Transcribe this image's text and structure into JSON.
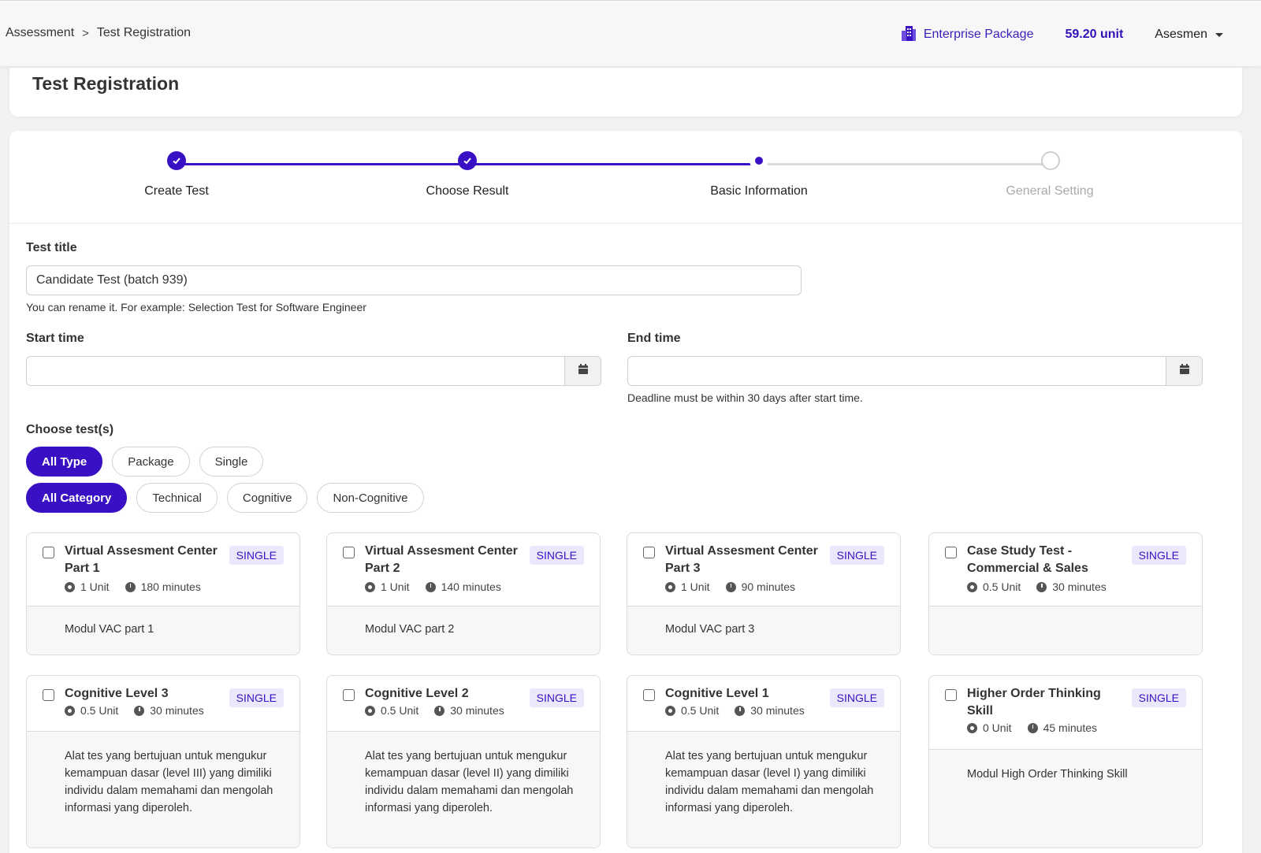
{
  "header": {
    "breadcrumb": [
      "Assessment",
      "Test Registration"
    ],
    "breadcrumb_separator": ">",
    "package_label": "Enterprise Package",
    "units": "59.20 unit",
    "user": "Asesmen"
  },
  "page_title": "Test Registration",
  "stepper": {
    "steps": [
      "Create Test",
      "Choose Result",
      "Basic Information",
      "General Setting"
    ],
    "current_step": 3
  },
  "form": {
    "test_title_label": "Test title",
    "test_title_value": "Candidate Test (batch 939)",
    "test_title_help": "You can rename it. For example: Selection Test for Software Engineer",
    "start_time_label": "Start time",
    "start_time_value": "",
    "end_time_label": "End time",
    "end_time_value": "",
    "end_time_help": "Deadline must be within 30 days after start time."
  },
  "choose_tests": {
    "label": "Choose test(s)",
    "type_filters": [
      "All Type",
      "Package",
      "Single"
    ],
    "category_filters": [
      "All Category",
      "Technical",
      "Cognitive",
      "Non-Cognitive"
    ],
    "active_type": "All Type",
    "active_category": "All Category"
  },
  "tests": [
    {
      "title": "Virtual Assesment Center Part 1",
      "badge": "SINGLE",
      "units": "1 Unit",
      "duration": "180 minutes",
      "description": "Modul VAC part 1"
    },
    {
      "title": "Virtual Assesment Center Part 2",
      "badge": "SINGLE",
      "units": "1 Unit",
      "duration": "140 minutes",
      "description": "Modul VAC part 2"
    },
    {
      "title": "Virtual Assesment Center Part 3",
      "badge": "SINGLE",
      "units": "1 Unit",
      "duration": "90 minutes",
      "description": "Modul VAC part 3"
    },
    {
      "title": "Case Study Test - Commercial & Sales",
      "badge": "SINGLE",
      "units": "0.5 Unit",
      "duration": "30 minutes",
      "description": ""
    },
    {
      "title": "Cognitive Level 3",
      "badge": "SINGLE",
      "units": "0.5 Unit",
      "duration": "30 minutes",
      "description": "Alat tes yang bertujuan untuk mengukur kemampuan dasar (level III) yang dimiliki individu dalam memahami dan mengolah informasi yang diperoleh."
    },
    {
      "title": "Cognitive Level 2",
      "badge": "SINGLE",
      "units": "0.5 Unit",
      "duration": "30 minutes",
      "description": "Alat tes yang bertujuan untuk mengukur kemampuan dasar (level II) yang dimiliki individu dalam memahami dan mengolah informasi yang diperoleh."
    },
    {
      "title": "Cognitive Level 1",
      "badge": "SINGLE",
      "units": "0.5 Unit",
      "duration": "30 minutes",
      "description": "Alat tes yang bertujuan untuk mengukur kemampuan dasar (level I) yang dimiliki individu dalam memahami dan mengolah informasi yang diperoleh."
    },
    {
      "title": "Higher Order Thinking Skill",
      "badge": "SINGLE",
      "units": "0 Unit",
      "duration": "45 minutes",
      "description": "Modul High Order Thinking Skill"
    }
  ],
  "colors": {
    "accent": "#3a10c4",
    "badge_bg": "#ece8fb"
  },
  "icons": {
    "package": "building-icon",
    "calendar": "calendar-icon",
    "check": "check-icon"
  }
}
